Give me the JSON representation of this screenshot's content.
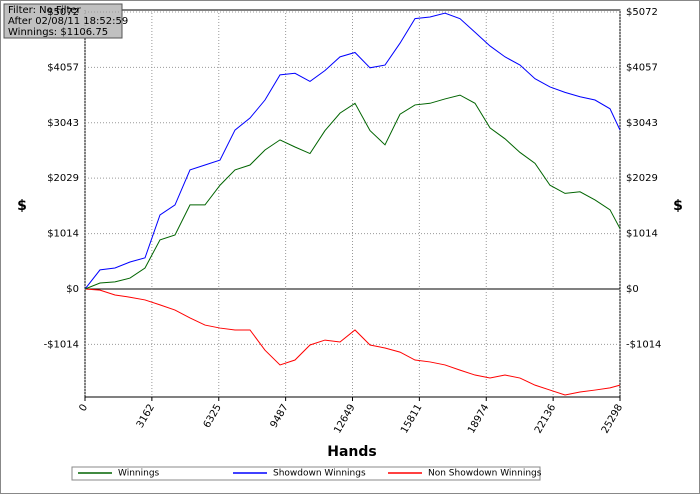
{
  "chart_data": {
    "type": "line",
    "info": [
      "Filter: No Filter",
      "After 02/08/11 18:52:59",
      "Winnings: $1106.75"
    ],
    "xlabel": "Hands",
    "ylabel": "$",
    "y2label": "$",
    "x": [
      0,
      709,
      1418,
      2128,
      2837,
      3546,
      4256,
      4965,
      5674,
      6384,
      7093,
      7802,
      8511,
      9221,
      9930,
      10639,
      11349,
      12058,
      12767,
      13477,
      14186,
      14895,
      15605,
      16314,
      17023,
      17732,
      18442,
      19151,
      19860,
      20570,
      21279,
      21988,
      22698,
      23407,
      24116,
      24826,
      25298
    ],
    "series": [
      {
        "name": "Winnings",
        "color": "#006400",
        "values": [
          0,
          110,
          130,
          200,
          385,
          900,
          990,
          1540,
          1540,
          1900,
          2180,
          2270,
          2545,
          2730,
          2600,
          2480,
          2900,
          3220,
          3400,
          2900,
          2640,
          3200,
          3370,
          3400,
          3480,
          3550,
          3400,
          2950,
          2750,
          2500,
          2300,
          1900,
          1750,
          1780,
          1630,
          1450,
          1106.75
        ]
      },
      {
        "name": "Showdown Winnings",
        "color": "#0000ff",
        "values": [
          0,
          350,
          385,
          495,
          570,
          1355,
          1540,
          2180,
          2270,
          2360,
          2910,
          3130,
          3460,
          3920,
          3950,
          3800,
          4000,
          4250,
          4330,
          4050,
          4100,
          4500,
          4950,
          4980,
          5050,
          4950,
          4700,
          4450,
          4250,
          4100,
          3850,
          3700,
          3600,
          3520,
          3460,
          3300,
          2910
        ]
      },
      {
        "name": "Non Showdown Winnings",
        "color": "#ff0000",
        "values": [
          0,
          -20,
          -110,
          -150,
          -200,
          -290,
          -385,
          -530,
          -660,
          -715,
          -750,
          -750,
          -1120,
          -1390,
          -1300,
          -1025,
          -935,
          -970,
          -750,
          -1025,
          -1080,
          -1155,
          -1300,
          -1335,
          -1390,
          -1485,
          -1575,
          -1630,
          -1575,
          -1630,
          -1760,
          -1850,
          -1940,
          -1885,
          -1850,
          -1810,
          -1760
        ]
      }
    ],
    "xlim": [
      0,
      25298
    ],
    "xticks": [
      0,
      3162,
      6325,
      9487,
      12649,
      15811,
      18974,
      22136,
      25298
    ],
    "ylim": [
      -1977,
      5108
    ],
    "yticks": [
      {
        "value": -1014,
        "label": "-$1014"
      },
      {
        "value": 0,
        "label": "$0"
      },
      {
        "value": 1014,
        "label": "$1014"
      },
      {
        "value": 2029,
        "label": "$2029"
      },
      {
        "value": 3043,
        "label": "$3043"
      },
      {
        "value": 4057,
        "label": "$4057"
      },
      {
        "value": 5072,
        "label": "$5072"
      }
    ],
    "grid": true
  }
}
